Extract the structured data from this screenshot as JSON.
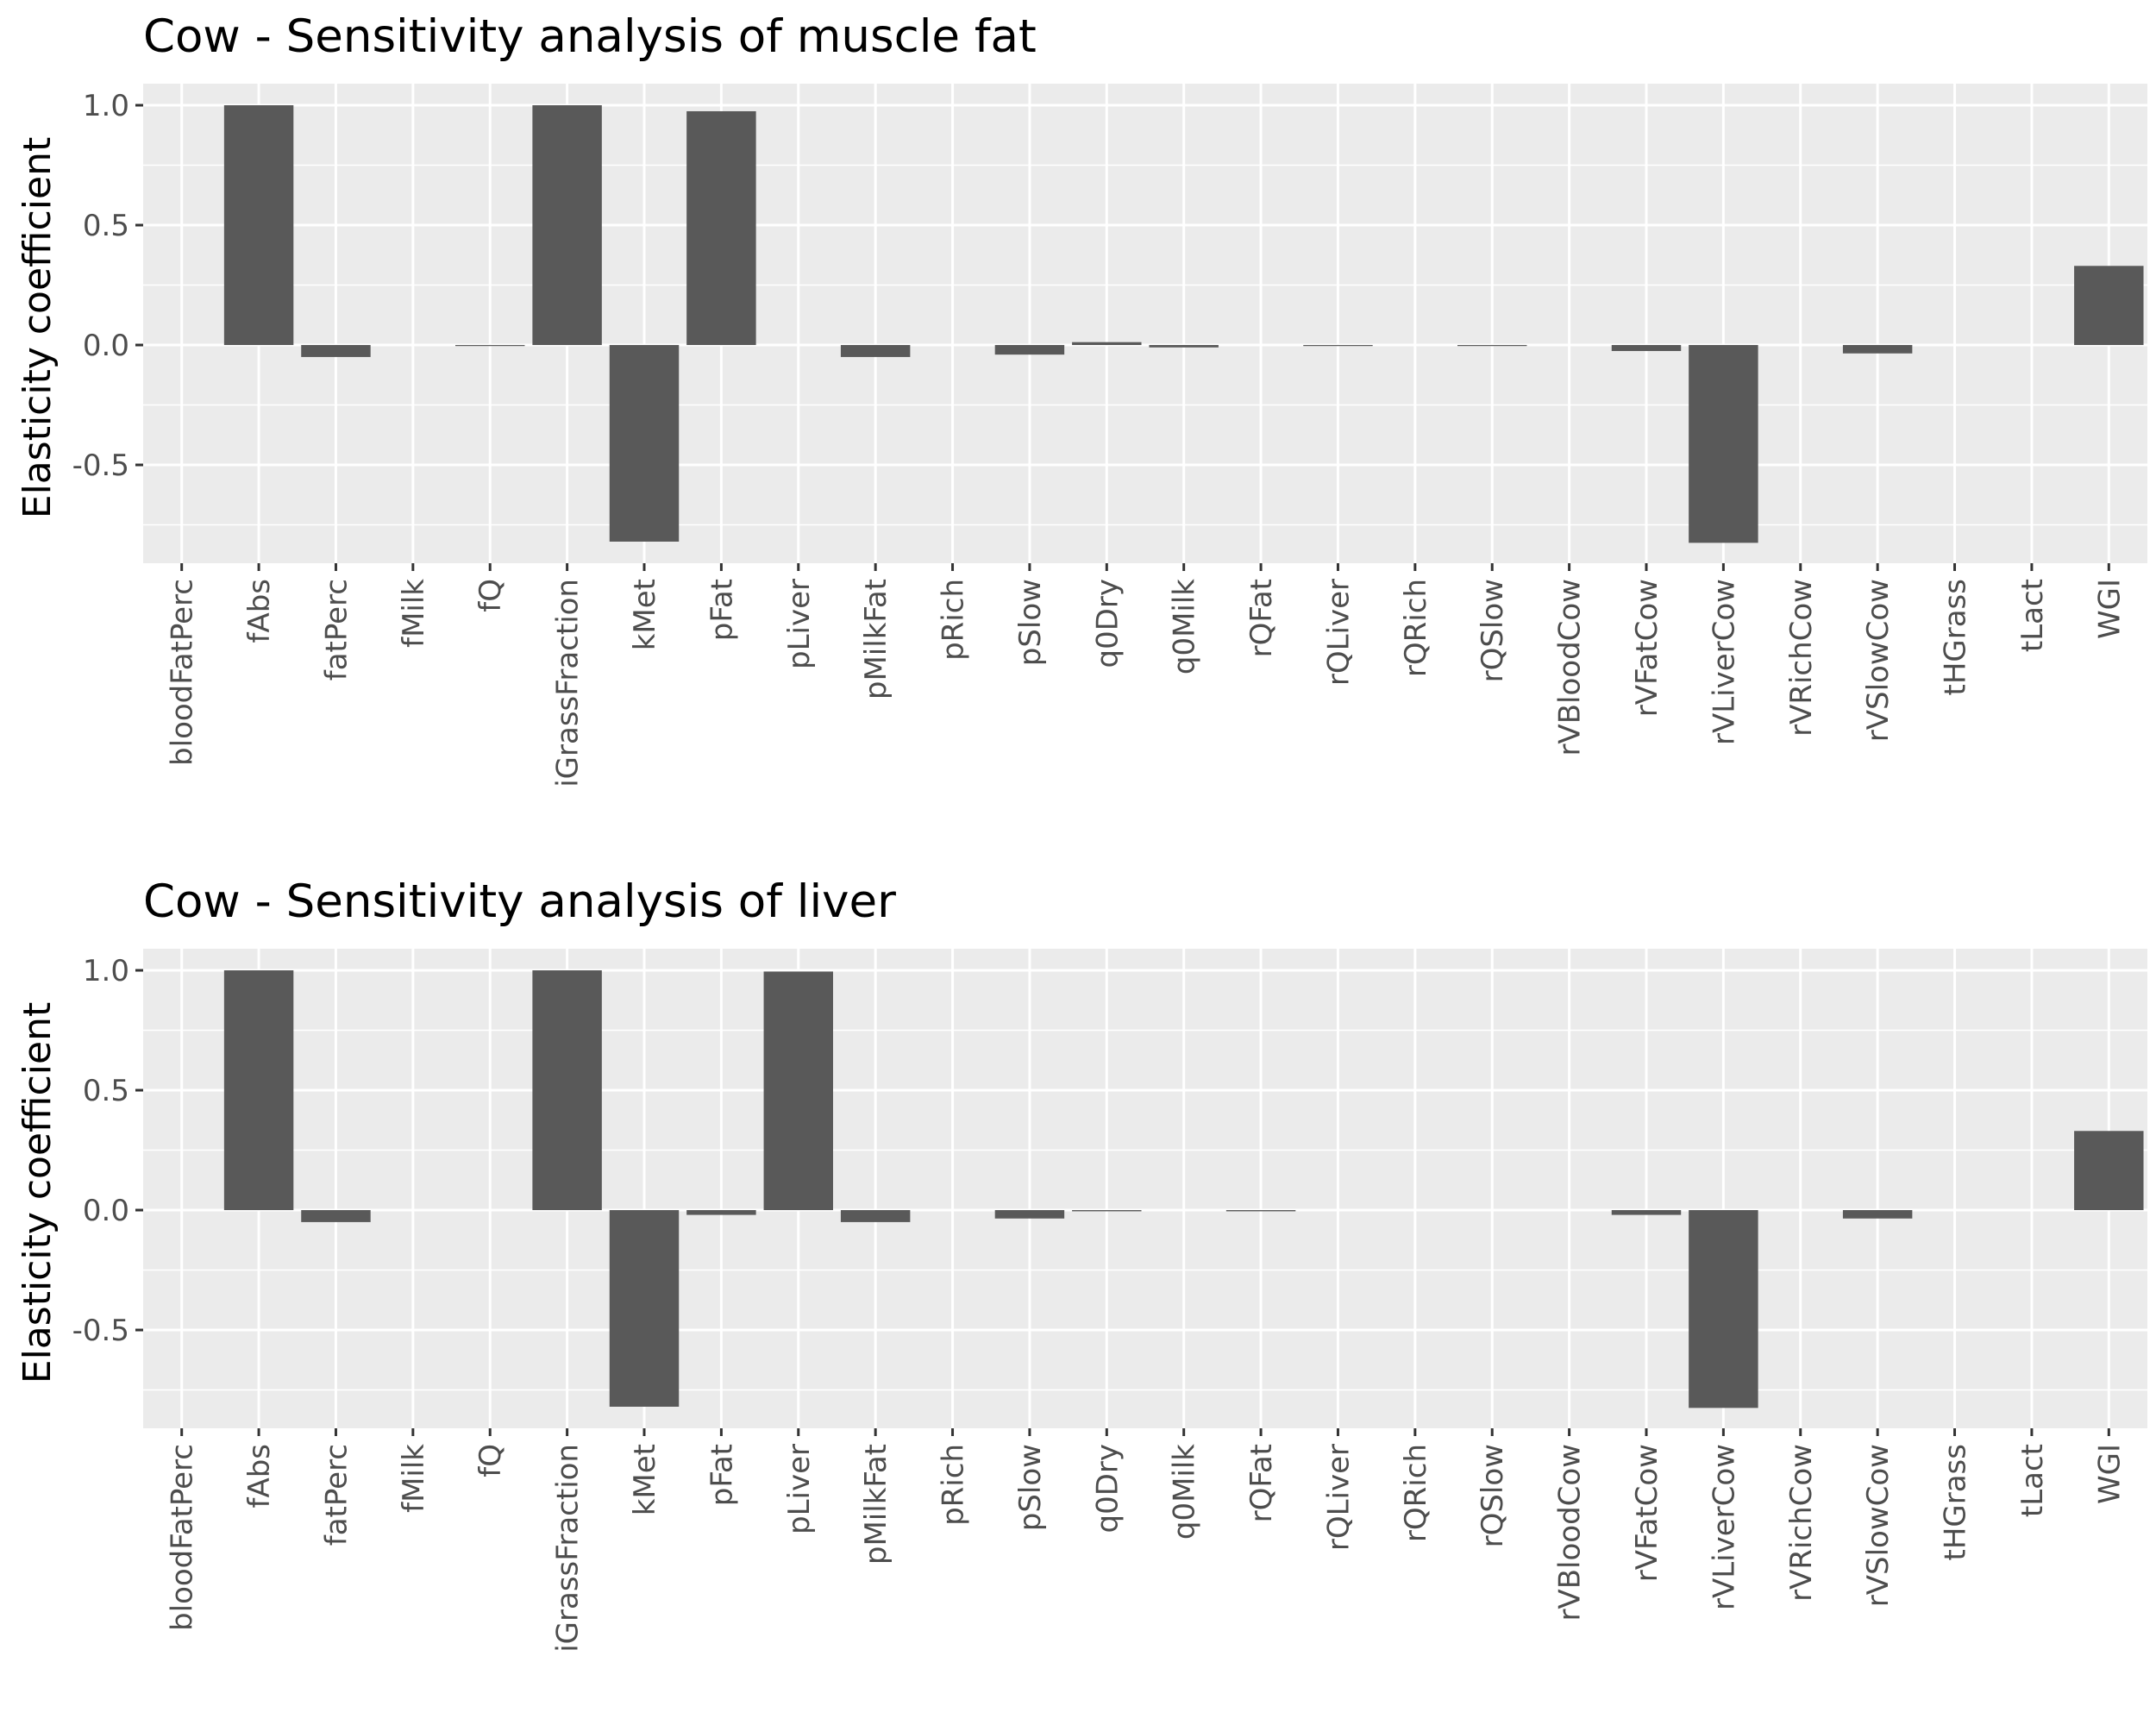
{
  "colors": {
    "panel_background": "#ebebeb",
    "grid_major": "#ffffff",
    "bar_fill": "#595959",
    "tick_label": "#4d4d4d",
    "tick_mark": "#333333",
    "text": "#000000"
  },
  "chart_data": [
    {
      "type": "bar",
      "title": "Cow - Sensitivity analysis of muscle fat",
      "xlabel": "",
      "ylabel": "Elasticity coefficient",
      "ylim": [
        -0.91,
        1.09
      ],
      "yticks": [
        -0.5,
        0.0,
        0.5,
        1.0
      ],
      "ytick_labels": [
        "-0.5",
        "0.0",
        "0.5",
        "1.0"
      ],
      "grid": true,
      "categories": [
        "bloodFatPerc",
        "fAbs",
        "fatPerc",
        "fMilk",
        "fQ",
        "iGrassFraction",
        "kMet",
        "pFat",
        "pLiver",
        "pMilkFat",
        "pRich",
        "pSlow",
        "q0Dry",
        "q0Milk",
        "rQFat",
        "rQLiver",
        "rQRich",
        "rQSlow",
        "rVBloodCow",
        "rVFatCow",
        "rVLiverCow",
        "rVRichCow",
        "rVSlowCow",
        "tHGrass",
        "tLact",
        "WGI"
      ],
      "values": [
        0,
        1.0,
        -0.05,
        0,
        -0.003,
        1.0,
        -0.82,
        0.975,
        0,
        -0.05,
        0,
        -0.04,
        0.012,
        -0.01,
        0,
        -0.003,
        0,
        -0.003,
        0,
        -0.025,
        -0.825,
        0,
        -0.035,
        0,
        0,
        0.33
      ]
    },
    {
      "type": "bar",
      "title": "Cow - Sensitivity analysis of liver",
      "xlabel": "",
      "ylabel": "Elasticity coefficient",
      "ylim": [
        -0.91,
        1.09
      ],
      "yticks": [
        -0.5,
        0.0,
        0.5,
        1.0
      ],
      "ytick_labels": [
        "-0.5",
        "0.0",
        "0.5",
        "1.0"
      ],
      "grid": true,
      "categories": [
        "bloodFatPerc",
        "fAbs",
        "fatPerc",
        "fMilk",
        "fQ",
        "iGrassFraction",
        "kMet",
        "pFat",
        "pLiver",
        "pMilkFat",
        "pRich",
        "pSlow",
        "q0Dry",
        "q0Milk",
        "rQFat",
        "rQLiver",
        "rQRich",
        "rQSlow",
        "rVBloodCow",
        "rVFatCow",
        "rVLiverCow",
        "rVRichCow",
        "rVSlowCow",
        "tHGrass",
        "tLact",
        "WGI"
      ],
      "values": [
        0,
        1.0,
        -0.05,
        0,
        0,
        1.0,
        -0.82,
        -0.02,
        0.995,
        -0.05,
        0,
        -0.035,
        -0.005,
        0,
        -0.005,
        0,
        0,
        0,
        0,
        -0.02,
        -0.825,
        0,
        -0.035,
        0,
        0,
        0.33
      ]
    }
  ]
}
